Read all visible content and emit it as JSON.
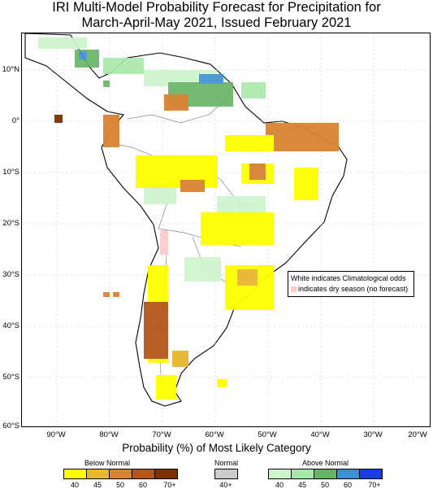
{
  "title": {
    "line1": "IRI Multi-Model Probability Forecast for Precipitation for",
    "line2": "March-April-May 2021, Issued February 2021"
  },
  "map": {
    "lat_labels": [
      "10°N",
      "0°",
      "10°S",
      "20°S",
      "30°S",
      "40°S",
      "50°S",
      "60°S"
    ],
    "lon_labels": [
      "90°W",
      "80°W",
      "70°W",
      "60°W",
      "50°W",
      "40°W",
      "30°W",
      "20°W"
    ],
    "notice_line1": "White indicates Climatological odds",
    "notice_line2": "indicates dry season (no forecast)"
  },
  "legend": {
    "title": "Probability (%) of Most Likely Category",
    "below_label": "Below Normal",
    "normal_label": "Normal",
    "above_label": "Above Normal",
    "below_colors": [
      "#ffff00",
      "#e8b730",
      "#d98232",
      "#b5551b",
      "#7a3300"
    ],
    "below_ticks": [
      "40",
      "45",
      "50",
      "60",
      "70+"
    ],
    "normal_colors": [
      "#cccccc"
    ],
    "normal_ticks": [
      "40+"
    ],
    "above_colors": [
      "#ccf5cc",
      "#a8e8a8",
      "#66b366",
      "#3d8fd1",
      "#1a3de6"
    ],
    "above_ticks": [
      "40",
      "45",
      "50",
      "60",
      "70+"
    ],
    "dry_color": "#ffcccc"
  }
}
